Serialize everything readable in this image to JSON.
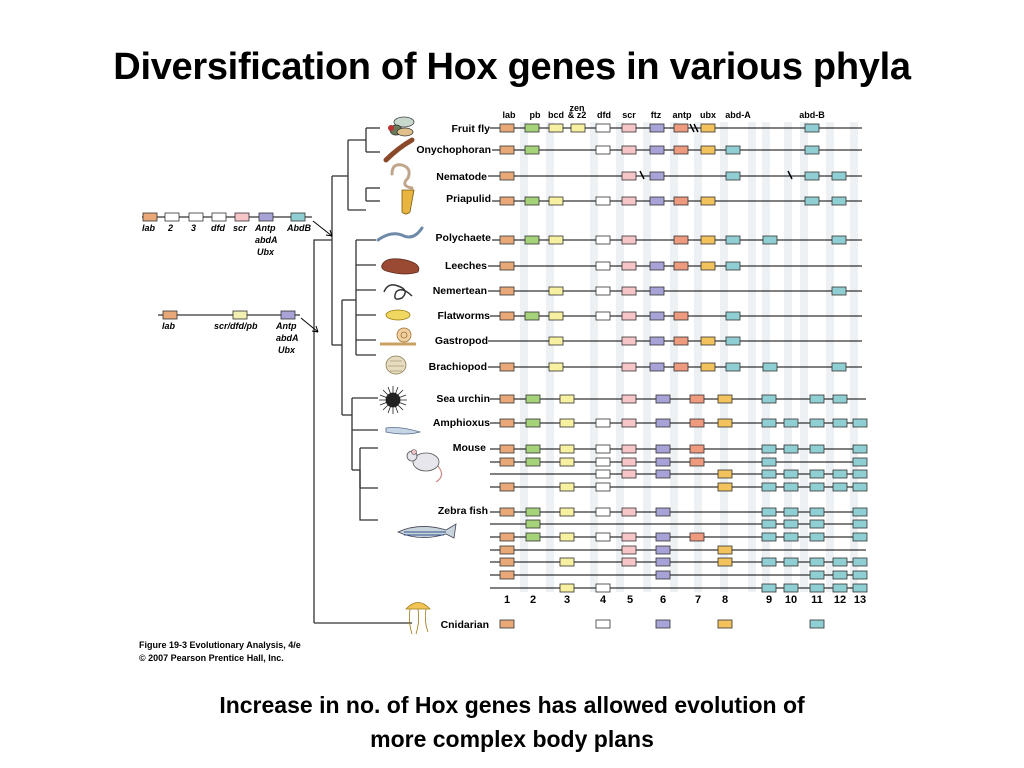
{
  "slide": {
    "title": "Diversification of Hox genes in various phyla",
    "caption_line1": "Increase in no. of Hox genes has allowed evolution of",
    "caption_line2": "more complex body plans"
  },
  "figure": {
    "credit_line1": "Figure 19-3  Evolutionary Analysis, 4/e",
    "credit_line2": "© 2007 Pearson Prentice Hall, Inc.",
    "header_labels": [
      "lab",
      "pb",
      "bcd",
      "zen",
      "& z2",
      "dfd",
      "scr",
      "ftz",
      "antp",
      "ubx",
      "abd-A",
      "abd-B"
    ],
    "column_numbers": [
      "1",
      "2",
      "3",
      "4",
      "5",
      "6",
      "7",
      "8",
      "9",
      "10",
      "11",
      "12",
      "13"
    ],
    "ancestral_cluster_1": {
      "labels": [
        "lab",
        "2",
        "3",
        "dfd",
        "scr",
        "Antp",
        "AbdB"
      ],
      "extra_lines": [
        "abdA",
        "Ubx"
      ]
    },
    "ancestral_cluster_2": {
      "labels": [
        "lab",
        "scr/dfd/pb",
        "Antp"
      ],
      "extra_lines": [
        "abdA",
        "Ubx"
      ]
    },
    "taxa": [
      {
        "name": "Fruit fly",
        "organism_icon": "fruit-fly-icon"
      },
      {
        "name": "Onychophoran",
        "organism_icon": "onychophoran-icon"
      },
      {
        "name": "Nematode",
        "organism_icon": "nematode-icon"
      },
      {
        "name": "Priapulid",
        "organism_icon": "priapulid-icon"
      },
      {
        "name": "Polychaete",
        "organism_icon": "polychaete-icon"
      },
      {
        "name": "Leeches",
        "organism_icon": "leech-icon"
      },
      {
        "name": "Nemertean",
        "organism_icon": "nemertean-icon"
      },
      {
        "name": "Flatworms",
        "organism_icon": "flatworm-icon"
      },
      {
        "name": "Gastropod",
        "organism_icon": "gastropod-icon"
      },
      {
        "name": "Brachiopod",
        "organism_icon": "brachiopod-icon"
      },
      {
        "name": "Sea urchin",
        "organism_icon": "sea-urchin-icon"
      },
      {
        "name": "Amphioxus",
        "organism_icon": "amphioxus-icon"
      },
      {
        "name": "Mouse",
        "organism_icon": "mouse-icon"
      },
      {
        "name": "Zebra fish",
        "organism_icon": "zebra-fish-icon"
      },
      {
        "name": "Cnidarian",
        "organism_icon": "cnidarian-icon"
      }
    ],
    "gene_rows": [
      {
        "taxon": "Fruit fly",
        "genes": [
          "1",
          "2",
          "3",
          "3b",
          "4",
          "5",
          "6",
          "7",
          "8",
          "11"
        ]
      },
      {
        "taxon": "Onychophoran",
        "genes": [
          "1",
          "2",
          "4",
          "5",
          "6",
          "7",
          "8",
          "9",
          "11"
        ]
      },
      {
        "taxon": "Nematode",
        "genes": [
          "1",
          "5",
          "6",
          "9",
          "11",
          "12"
        ]
      },
      {
        "taxon": "Priapulid",
        "genes": [
          "1",
          "2",
          "3",
          "4",
          "5",
          "6",
          "7",
          "8",
          "11",
          "12"
        ]
      },
      {
        "taxon": "Polychaete",
        "genes": [
          "1",
          "2",
          "3",
          "4",
          "5",
          "7",
          "8",
          "9",
          "10",
          "12"
        ]
      },
      {
        "taxon": "Leeches",
        "genes": [
          "1",
          "4",
          "5",
          "6",
          "7",
          "8",
          "9"
        ]
      },
      {
        "taxon": "Nemertean",
        "genes": [
          "1",
          "3",
          "4",
          "5",
          "6",
          "12"
        ]
      },
      {
        "taxon": "Flatworms",
        "genes": [
          "1",
          "2",
          "3",
          "4",
          "5",
          "6",
          "7",
          "9"
        ]
      },
      {
        "taxon": "Gastropod",
        "genes": [
          "3",
          "5",
          "6",
          "7",
          "8",
          "9"
        ]
      },
      {
        "taxon": "Brachiopod",
        "genes": [
          "1",
          "3",
          "5",
          "6",
          "7",
          "8",
          "9",
          "10",
          "12"
        ]
      },
      {
        "taxon": "Sea urchin",
        "genes": [
          "1",
          "2",
          "3",
          "5",
          "6",
          "7",
          "8",
          "9",
          "11",
          "12"
        ]
      },
      {
        "taxon": "Amphioxus",
        "genes": [
          "1",
          "2",
          "3",
          "4",
          "5",
          "6",
          "7",
          "8",
          "9",
          "10",
          "11",
          "12",
          "13"
        ]
      },
      {
        "taxon": "Mouse a",
        "genes": [
          "1",
          "2",
          "3",
          "4",
          "5",
          "6",
          "7",
          "9",
          "10",
          "11",
          "13"
        ]
      },
      {
        "taxon": "Mouse b",
        "genes": [
          "1",
          "2",
          "3",
          "4",
          "5",
          "6",
          "7",
          "9",
          "13"
        ]
      },
      {
        "taxon": "Mouse c",
        "genes": [
          "4",
          "5",
          "6",
          "8",
          "9",
          "10",
          "11",
          "12",
          "13"
        ]
      },
      {
        "taxon": "Mouse d",
        "genes": [
          "1",
          "3",
          "4",
          "8",
          "9",
          "10",
          "11",
          "12",
          "13"
        ]
      },
      {
        "taxon": "Zebra fish a",
        "genes": [
          "1",
          "2",
          "3",
          "4",
          "5",
          "6",
          "9",
          "10",
          "11",
          "13"
        ]
      },
      {
        "taxon": "Zebra fish b",
        "genes": [
          "2",
          "9",
          "10",
          "11",
          "13"
        ]
      },
      {
        "taxon": "Zebra fish c",
        "genes": [
          "1",
          "2",
          "3",
          "4",
          "5",
          "6",
          "7",
          "9",
          "10",
          "11",
          "13"
        ]
      },
      {
        "taxon": "Zebra fish d",
        "genes": [
          "1",
          "5",
          "6",
          "8"
        ]
      },
      {
        "taxon": "Zebra fish e",
        "genes": [
          "1",
          "3",
          "5",
          "6",
          "8",
          "9",
          "10",
          "11",
          "12",
          "13"
        ]
      },
      {
        "taxon": "Zebra fish f",
        "genes": [
          "1",
          "6",
          "11",
          "12",
          "13"
        ]
      },
      {
        "taxon": "Zebra fish g",
        "genes": [
          "3",
          "4",
          "9",
          "10",
          "11",
          "12",
          "13"
        ]
      },
      {
        "taxon": "Cnidarian",
        "genes": [
          "1",
          "4",
          "6",
          "8",
          "11"
        ]
      }
    ],
    "gene_colors": {
      "1": "#e8a878",
      "2": "#a6d27a",
      "3": "#f7f0a0",
      "3b": "#f7f0a0",
      "4": "#ffffff",
      "5": "#f6c5c7",
      "6": "#a7a3d6",
      "7": "#ed9a7e",
      "8": "#f2c25c",
      "9": "#8fcfd3",
      "10": "#8fcfd3",
      "11": "#8fcfd3",
      "12": "#8fcfd3",
      "13": "#8fcfd3"
    },
    "ancestral_colors": [
      "#e8a878",
      "#ffffff",
      "#ffffff",
      "#ffffff",
      "#f6c5c7",
      "#a7a3d6",
      "#8fcfd3"
    ],
    "ancestral_colors_2": [
      "#e8a878",
      "#f2f0b0",
      "#a7a3d6"
    ]
  }
}
